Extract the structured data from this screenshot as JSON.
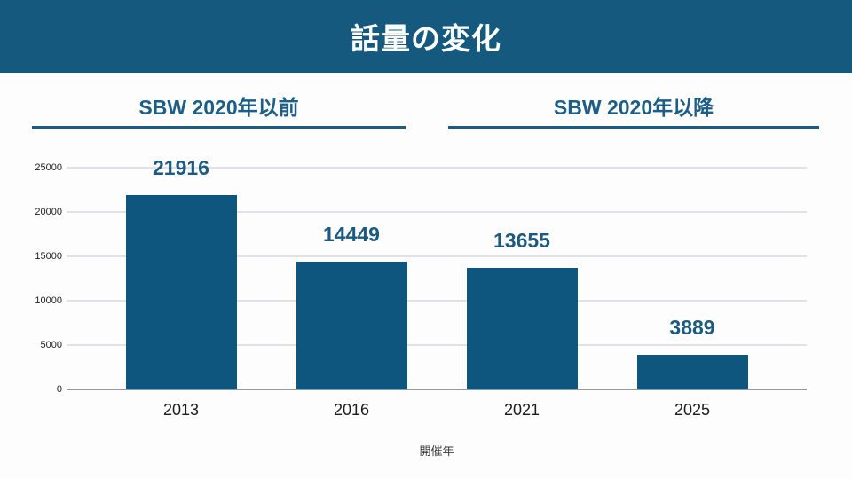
{
  "header": {
    "title": "話量の変化"
  },
  "sections": [
    {
      "label": "SBW 2020年以前"
    },
    {
      "label": "SBW 2020年以降"
    }
  ],
  "chart_data": {
    "type": "bar",
    "title": "話量の変化",
    "categories": [
      "2013",
      "2016",
      "2021",
      "2025"
    ],
    "values": [
      21916,
      14449,
      13655,
      3889
    ],
    "xlabel": "開催年",
    "ylabel": "",
    "ylim": [
      0,
      25000
    ],
    "yticks": [
      0,
      5000,
      10000,
      15000,
      20000,
      25000
    ],
    "grid": true,
    "legend": false,
    "value_labels_shown": true,
    "groups": [
      {
        "label": "SBW 2020年以前",
        "categories": [
          "2013",
          "2016"
        ]
      },
      {
        "label": "SBW 2020年以降",
        "categories": [
          "2021",
          "2025"
        ]
      }
    ]
  },
  "colors": {
    "background": "#fdfdfd",
    "header_bg": "#15597e",
    "header_text": "#ffffff",
    "bar": "#0f567e",
    "section_text": "#1d5e86",
    "section_underline": "#1a5c84",
    "value_label": "#1d5a82",
    "gridline": "#e2e2e6",
    "axis_line": "#97979d",
    "tick_text": "#1f1f1f"
  }
}
